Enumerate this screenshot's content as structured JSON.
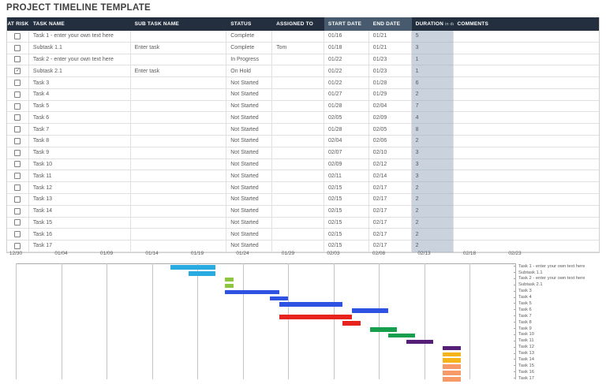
{
  "title": "PROJECT TIMELINE TEMPLATE",
  "table": {
    "columns": [
      {
        "key": "at_risk",
        "label": "AT RISK"
      },
      {
        "key": "task",
        "label": "TASK NAME"
      },
      {
        "key": "subtask",
        "label": "SUB TASK NAME"
      },
      {
        "key": "status",
        "label": "STATUS"
      },
      {
        "key": "assigned",
        "label": "ASSIGNED TO"
      },
      {
        "key": "start",
        "label": "START DATE",
        "variant": "slate"
      },
      {
        "key": "end",
        "label": "END DATE",
        "variant": "slate"
      },
      {
        "key": "duration",
        "label": "DURATION",
        "suffix": "in days"
      },
      {
        "key": "comments",
        "label": "COMMENTS"
      }
    ],
    "rows": [
      {
        "at_risk": false,
        "task": "Task 1 - enter your own text here",
        "subtask": "",
        "status": "Complete",
        "assigned": "",
        "start": "01/16",
        "end": "01/21",
        "duration": "5",
        "comments": ""
      },
      {
        "at_risk": false,
        "task": "Subtask 1.1",
        "subtask": "Enter task",
        "status": "Complete",
        "assigned": "Tom",
        "start": "01/18",
        "end": "01/21",
        "duration": "3",
        "comments": ""
      },
      {
        "at_risk": false,
        "task": "Task 2 - enter your own text here",
        "subtask": "",
        "status": "In Progress",
        "assigned": "",
        "start": "01/22",
        "end": "01/23",
        "duration": "1",
        "comments": ""
      },
      {
        "at_risk": true,
        "task": "Subtask 2.1",
        "subtask": "Enter task",
        "status": "On Hold",
        "assigned": "",
        "start": "01/22",
        "end": "01/23",
        "duration": "1",
        "comments": ""
      },
      {
        "at_risk": false,
        "task": "Task 3",
        "subtask": "",
        "status": "Not Started",
        "assigned": "",
        "start": "01/22",
        "end": "01/28",
        "duration": "6",
        "comments": ""
      },
      {
        "at_risk": false,
        "task": "Task 4",
        "subtask": "",
        "status": "Not Started",
        "assigned": "",
        "start": "01/27",
        "end": "01/29",
        "duration": "2",
        "comments": ""
      },
      {
        "at_risk": false,
        "task": "Task 5",
        "subtask": "",
        "status": "Not Started",
        "assigned": "",
        "start": "01/28",
        "end": "02/04",
        "duration": "7",
        "comments": ""
      },
      {
        "at_risk": false,
        "task": "Task 6",
        "subtask": "",
        "status": "Not Started",
        "assigned": "",
        "start": "02/05",
        "end": "02/09",
        "duration": "4",
        "comments": ""
      },
      {
        "at_risk": false,
        "task": "Task 7",
        "subtask": "",
        "status": "Not Started",
        "assigned": "",
        "start": "01/28",
        "end": "02/05",
        "duration": "8",
        "comments": ""
      },
      {
        "at_risk": false,
        "task": "Task 8",
        "subtask": "",
        "status": "Not Started",
        "assigned": "",
        "start": "02/04",
        "end": "02/06",
        "duration": "2",
        "comments": ""
      },
      {
        "at_risk": false,
        "task": "Task 9",
        "subtask": "",
        "status": "Not Started",
        "assigned": "",
        "start": "02/07",
        "end": "02/10",
        "duration": "3",
        "comments": ""
      },
      {
        "at_risk": false,
        "task": "Task 10",
        "subtask": "",
        "status": "Not Started",
        "assigned": "",
        "start": "02/09",
        "end": "02/12",
        "duration": "3",
        "comments": ""
      },
      {
        "at_risk": false,
        "task": "Task 11",
        "subtask": "",
        "status": "Not Started",
        "assigned": "",
        "start": "02/11",
        "end": "02/14",
        "duration": "3",
        "comments": ""
      },
      {
        "at_risk": false,
        "task": "Task 12",
        "subtask": "",
        "status": "Not Started",
        "assigned": "",
        "start": "02/15",
        "end": "02/17",
        "duration": "2",
        "comments": ""
      },
      {
        "at_risk": false,
        "task": "Task 13",
        "subtask": "",
        "status": "Not Started",
        "assigned": "",
        "start": "02/15",
        "end": "02/17",
        "duration": "2",
        "comments": ""
      },
      {
        "at_risk": false,
        "task": "Task 14",
        "subtask": "",
        "status": "Not Started",
        "assigned": "",
        "start": "02/15",
        "end": "02/17",
        "duration": "2",
        "comments": ""
      },
      {
        "at_risk": false,
        "task": "Task 15",
        "subtask": "",
        "status": "Not Started",
        "assigned": "",
        "start": "02/15",
        "end": "02/17",
        "duration": "2",
        "comments": ""
      },
      {
        "at_risk": false,
        "task": "Task 16",
        "subtask": "",
        "status": "Not Started",
        "assigned": "",
        "start": "02/15",
        "end": "02/17",
        "duration": "2",
        "comments": ""
      },
      {
        "at_risk": false,
        "task": "Task 17",
        "subtask": "",
        "status": "Not Started",
        "assigned": "",
        "start": "02/15",
        "end": "02/17",
        "duration": "2",
        "comments": ""
      }
    ]
  },
  "chart_data": {
    "type": "gantt",
    "x_ticks": [
      "12/30",
      "01/04",
      "01/09",
      "01/14",
      "01/19",
      "01/24",
      "01/29",
      "02/03",
      "02/08",
      "02/13",
      "02/18",
      "02/23"
    ],
    "x_tick_interval_days": 5,
    "grid": true,
    "label_position": "right",
    "tasks": [
      {
        "label": "Task 1 - enter your own text here",
        "start": "01/16",
        "end": "01/21",
        "duration": 5,
        "color": "#29ABE2"
      },
      {
        "label": "Subtask 1.1",
        "start": "01/18",
        "end": "01/21",
        "duration": 3,
        "color": "#29ABE2"
      },
      {
        "label": "Task 2 - enter your own text here",
        "start": "01/22",
        "end": "01/23",
        "duration": 1,
        "color": "#8CC63F"
      },
      {
        "label": "Subtask 2.1",
        "start": "01/22",
        "end": "01/23",
        "duration": 1,
        "color": "#8CC63F"
      },
      {
        "label": "Task 3",
        "start": "01/22",
        "end": "01/28",
        "duration": 6,
        "color": "#2E53E3"
      },
      {
        "label": "Task 4",
        "start": "01/27",
        "end": "01/29",
        "duration": 2,
        "color": "#2E53E3"
      },
      {
        "label": "Task 5",
        "start": "01/28",
        "end": "02/04",
        "duration": 7,
        "color": "#2E53E3"
      },
      {
        "label": "Task 6",
        "start": "02/05",
        "end": "02/09",
        "duration": 4,
        "color": "#2E53E3"
      },
      {
        "label": "Task 7",
        "start": "01/28",
        "end": "02/05",
        "duration": 8,
        "color": "#E8231E"
      },
      {
        "label": "Task 8",
        "start": "02/04",
        "end": "02/06",
        "duration": 2,
        "color": "#E8231E"
      },
      {
        "label": "Task 9",
        "start": "02/07",
        "end": "02/10",
        "duration": 3,
        "color": "#189F4E"
      },
      {
        "label": "Task 10",
        "start": "02/09",
        "end": "02/12",
        "duration": 3,
        "color": "#189F4E"
      },
      {
        "label": "Task 11",
        "start": "02/11",
        "end": "02/14",
        "duration": 3,
        "color": "#561E77"
      },
      {
        "label": "Task 12",
        "start": "02/15",
        "end": "02/17",
        "duration": 2,
        "color": "#561E77"
      },
      {
        "label": "Task 13",
        "start": "02/15",
        "end": "02/17",
        "duration": 2,
        "color": "#F5B31C"
      },
      {
        "label": "Task 14",
        "start": "02/15",
        "end": "02/17",
        "duration": 2,
        "color": "#F5B31C"
      },
      {
        "label": "Task 15",
        "start": "02/15",
        "end": "02/17",
        "duration": 2,
        "color": "#F79A67"
      },
      {
        "label": "Task 16",
        "start": "02/15",
        "end": "02/17",
        "duration": 2,
        "color": "#F79A67"
      },
      {
        "label": "Task 17",
        "start": "02/15",
        "end": "02/17",
        "duration": 2,
        "color": "#F79A67"
      }
    ],
    "colors": {
      "cyan": "#29ABE2",
      "light_green": "#8CC63F",
      "blue": "#2E53E3",
      "red": "#E8231E",
      "green": "#189F4E",
      "purple": "#561E77",
      "gold": "#F5B31C",
      "orange": "#F79A67"
    }
  }
}
